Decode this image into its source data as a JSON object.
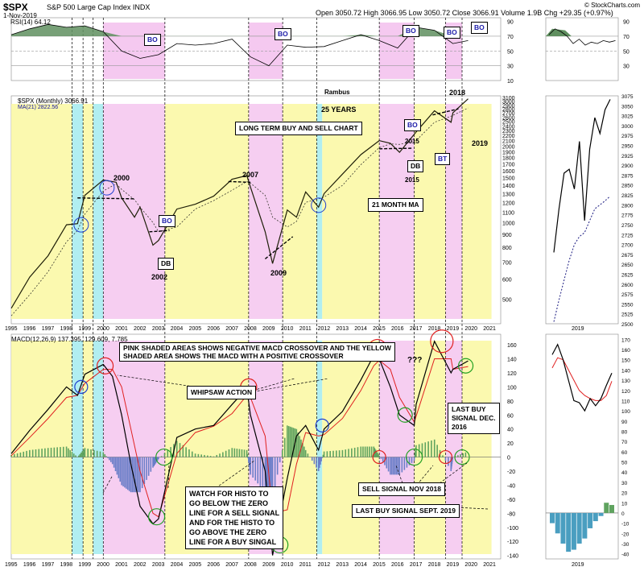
{
  "header": {
    "symbol": "$SPX",
    "name": "S&P 500 Large Cap Index INDX",
    "date": "1-Nov-2019",
    "ohlc": "Open 3050.72  High 3066.95  Low 3050.72  Close 3066.91  Volume 1.9B  Chg +29.35 (+0.97%)",
    "credit": "© StockCharts.com",
    "rsi_label": "RSI(14) 64.12",
    "spx_label": "$SPX (Monthly) 3066.91",
    "ma_label": "MA(21) 2822.56",
    "macd_label": "MACD(12,26,9) 137.395, 129.609, 7.785"
  },
  "annotations": {
    "rambus": "Rambus",
    "years": "25 YEARS",
    "long_term": "LONG TERM BUY AND SELL CHART",
    "y2000": "2000",
    "y2007": "2007",
    "y2002": "2002",
    "y2009": "2009",
    "y2018": "2018",
    "y2019": "2019",
    "y2015a": "2015",
    "y2015b": "2015",
    "db1": "DB",
    "db2": "DB",
    "bt": "BT",
    "bo1": "BO",
    "bo2": "BO",
    "bo3": "BO",
    "bo4": "BO",
    "bo5": "BO",
    "bo6": "BO",
    "bo7": "BO",
    "ma21": "21 MONTH MA",
    "pink_yellow_1": "PINK SHADED AREAS SHOWS NEGATIVE MACD CROSSOVER AND THE YELLOW",
    "pink_yellow_2": "SHADED AREA SHOWS THE MACD WITH A POSITIVE CROSSOVER",
    "whipsaw": "WHIPSAW ACTION",
    "qqq": "???",
    "last_buy_1": "LAST BUY",
    "last_buy_2": "SIGNAL DEC.",
    "last_buy_3": "2016",
    "sell_nov": "SELL SIGNAL NOV 2018",
    "last_buy_sept": "LAST BUY SIGNAL SEPT. 2019",
    "watch_1": "WATCH FOR HISTO TO",
    "watch_2": "GO BELOW THE ZERO",
    "watch_3": "LINE FOR A SELL SIGNAL",
    "watch_4": "AND FOR THE HISTO TO",
    "watch_5": "GO ABOVE THE ZERO",
    "watch_6": "LINE FOR A BUY SINGAL"
  },
  "colors": {
    "yellow_zone": "#fbf8a6",
    "pink_zone": "#f5c9f0",
    "cyan_zone": "#a9ecf0",
    "price": "#1e1e08",
    "ma": "#3a3a30",
    "macd": "#000000",
    "signal": "#e02020",
    "hist_pos": "#5fa35f",
    "hist_neg": "#6a7ec8",
    "rsi_fill": "#5f8f5f",
    "circle_red": "#e02020",
    "circle_green": "#22a022",
    "circle_blue": "#2040d0"
  },
  "chart_data": [
    {
      "type": "line",
      "panel": "RSI",
      "title": "RSI(14) 64.12",
      "ylim": [
        10,
        95
      ],
      "yticks": [
        90,
        70,
        50,
        30,
        10
      ],
      "x": [
        1995,
        1996,
        1997,
        1998,
        1999,
        2000,
        2001,
        2002,
        2003,
        2004,
        2005,
        2006,
        2007,
        2008,
        2009,
        2010,
        2011,
        2012,
        2013,
        2014,
        2015,
        2016,
        2017,
        2018,
        2019,
        2019.83
      ],
      "values": [
        72,
        80,
        86,
        82,
        84,
        76,
        50,
        40,
        45,
        60,
        58,
        60,
        66,
        42,
        30,
        58,
        55,
        56,
        64,
        72,
        64,
        54,
        82,
        78,
        60,
        64
      ]
    },
    {
      "type": "line",
      "panel": "Price",
      "title": "$SPX (Monthly) 3066.91",
      "ylabel": "",
      "scale": "log",
      "ylim": [
        400,
        3150
      ],
      "yticks": [
        500,
        600,
        700,
        800,
        900,
        1000,
        1100,
        1200,
        1300,
        1400,
        1500,
        1600,
        1700,
        1800,
        1900,
        2000,
        2100,
        2200,
        2300,
        2400,
        2500,
        2600,
        2700,
        2800,
        2900,
        3000,
        3100
      ],
      "x": [
        1995,
        1996,
        1997,
        1998,
        1998.6,
        1999,
        2000,
        2000.7,
        2001,
        2001.7,
        2002,
        2002.7,
        2003,
        2004,
        2005,
        2006,
        2007,
        2007.8,
        2008,
        2008.8,
        2009.2,
        2010,
        2010.5,
        2011,
        2011.7,
        2012,
        2013,
        2014,
        2015,
        2015.6,
        2016.1,
        2017,
        2018,
        2018.9,
        2019,
        2019.83
      ],
      "series": [
        {
          "name": "$SPX",
          "values": [
            460,
            610,
            740,
            980,
            990,
            1280,
            1470,
            1440,
            1250,
            1050,
            1150,
            815,
            850,
            1130,
            1180,
            1270,
            1480,
            1530,
            1380,
            920,
            690,
            1120,
            1050,
            1320,
            1150,
            1300,
            1550,
            1850,
            2100,
            2050,
            1890,
            2270,
            2750,
            2480,
            2700,
            3066
          ]
        },
        {
          "name": "MA(21) 2822.56",
          "values": [
            430,
            520,
            640,
            840,
            930,
            1080,
            1330,
            1420,
            1350,
            1230,
            1150,
            1000,
            920,
            960,
            1130,
            1220,
            1340,
            1450,
            1430,
            1280,
            1050,
            960,
            1010,
            1200,
            1240,
            1260,
            1400,
            1690,
            1970,
            2040,
            2030,
            2100,
            2480,
            2620,
            2640,
            2822
          ]
        }
      ]
    },
    {
      "type": "line",
      "panel": "Price (2019 detail)",
      "ylim": [
        2500,
        3075
      ],
      "yticks": [
        3075,
        3050,
        3025,
        3000,
        2975,
        2950,
        2925,
        2900,
        2875,
        2850,
        2825,
        2800,
        2775,
        2750,
        2725,
        2700,
        2675,
        2650,
        2625,
        2600,
        2575,
        2550,
        2525,
        2500
      ],
      "xlabel": "2019",
      "series": [
        {
          "name": "$SPX",
          "values": [
            2680,
            2790,
            2880,
            2890,
            2840,
            2960,
            2760,
            2940,
            3020,
            2980,
            3040,
            3066
          ]
        },
        {
          "name": "MA(21)",
          "values": [
            2505,
            2560,
            2610,
            2660,
            2700,
            2720,
            2730,
            2760,
            2790,
            2800,
            2810,
            2822
          ]
        }
      ]
    },
    {
      "type": "line",
      "panel": "MACD",
      "title": "MACD(12,26,9) 137.395, 129.609, 7.785",
      "ylim": [
        -145,
        175
      ],
      "yticks": [
        160,
        140,
        120,
        100,
        80,
        60,
        40,
        20,
        0,
        -20,
        -40,
        -60,
        -80,
        -100,
        -120,
        -140
      ],
      "x": [
        1995,
        1996,
        1997,
        1998,
        1998.6,
        1999,
        2000,
        2000.5,
        2001,
        2001.5,
        2002,
        2002.7,
        2003,
        2004,
        2005,
        2006,
        2007,
        2007.8,
        2008,
        2008.8,
        2009.2,
        2010,
        2010.5,
        2011,
        2011.7,
        2012,
        2013,
        2014,
        2014.7,
        2015,
        2015.6,
        2016.1,
        2016.9,
        2017,
        2018,
        2018.9,
        2019,
        2019.83
      ],
      "series": [
        {
          "name": "MACD",
          "values": [
            5,
            38,
            68,
            100,
            88,
            118,
            132,
            115,
            60,
            -10,
            -70,
            -95,
            -88,
            28,
            40,
            45,
            75,
            98,
            60,
            -20,
            -140,
            -30,
            30,
            45,
            10,
            40,
            65,
            110,
            145,
            140,
            100,
            60,
            45,
            75,
            165,
            120,
            125,
            137
          ]
        },
        {
          "name": "Signal",
          "values": [
            2,
            28,
            55,
            85,
            88,
            105,
            125,
            125,
            100,
            40,
            -20,
            -80,
            -85,
            5,
            35,
            44,
            62,
            88,
            85,
            30,
            -80,
            -75,
            -10,
            35,
            30,
            32,
            55,
            95,
            130,
            138,
            125,
            85,
            50,
            58,
            140,
            140,
            125,
            129
          ]
        }
      ],
      "histogram": [
        3,
        10,
        13,
        15,
        0,
        13,
        7,
        -10,
        -40,
        -50,
        -50,
        -15,
        -3,
        23,
        5,
        1,
        13,
        10,
        -25,
        -50,
        -60,
        45,
        40,
        10,
        -20,
        8,
        10,
        15,
        15,
        2,
        -25,
        -25,
        -5,
        17,
        25,
        -20,
        0,
        8
      ]
    },
    {
      "type": "line",
      "panel": "MACD (2019 detail)",
      "ylim": [
        -45,
        175
      ],
      "yticks": [
        170,
        160,
        150,
        140,
        130,
        120,
        110,
        100,
        90,
        80,
        70,
        60,
        50,
        40,
        30,
        20,
        10,
        0,
        -10,
        -20,
        -30,
        -40
      ],
      "xlabel": "2019",
      "series": [
        {
          "name": "MACD",
          "values": [
            155,
            165,
            150,
            130,
            110,
            108,
            100,
            112,
            105,
            112,
            125,
            137
          ]
        },
        {
          "name": "Signal",
          "values": [
            142,
            152,
            150,
            140,
            130,
            120,
            115,
            112,
            110,
            110,
            115,
            129
          ]
        }
      ],
      "histogram": [
        -10,
        -20,
        -30,
        -38,
        -36,
        -30,
        -25,
        -15,
        -8,
        -3,
        10,
        7.8
      ]
    }
  ],
  "x_axis": {
    "years": [
      "1995",
      "1996",
      "1997",
      "1998",
      "1999",
      "2000",
      "2001",
      "2002",
      "2003",
      "2004",
      "2005",
      "2006",
      "2007",
      "2008",
      "2009",
      "2010",
      "2011",
      "2012",
      "2013",
      "2014",
      "2015",
      "2016",
      "2017",
      "2018",
      "2019",
      "2020",
      "2021"
    ],
    "detail": "2019"
  }
}
